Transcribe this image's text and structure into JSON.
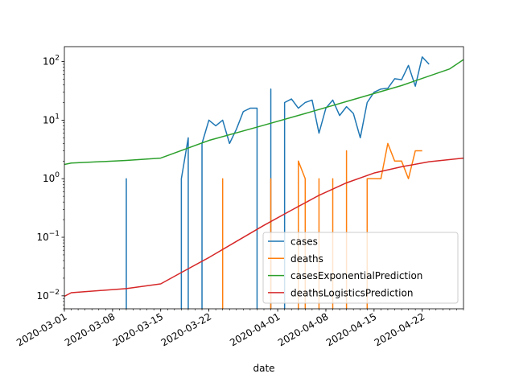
{
  "chart_data": {
    "type": "line",
    "xlabel": "date",
    "ylabel": "",
    "title": "",
    "yscale": "log",
    "ylim": [
      0.006,
      180
    ],
    "xlim": [
      "2020-03-01",
      "2020-04-28"
    ],
    "x_ticks": [
      "2020-03-01",
      "2020-03-08",
      "2020-03-15",
      "2020-03-22",
      "2020-04-01",
      "2020-04-08",
      "2020-04-15",
      "2020-04-22"
    ],
    "y_ticks": [
      {
        "value": 0.01,
        "base": "10",
        "exp": "−2"
      },
      {
        "value": 0.1,
        "base": "10",
        "exp": "−1"
      },
      {
        "value": 1,
        "base": "10",
        "exp": "0"
      },
      {
        "value": 10,
        "base": "10",
        "exp": "1"
      },
      {
        "value": 100,
        "base": "10",
        "exp": "2"
      }
    ],
    "grid": false,
    "legend_position": "lower right",
    "series": [
      {
        "name": "cases",
        "color": "#1f77b4",
        "points": [
          [
            "2020-03-10",
            0
          ],
          [
            "2020-03-10",
            1
          ],
          [
            "2020-03-10",
            0
          ],
          [
            "2020-03-18",
            0
          ],
          [
            "2020-03-18",
            1
          ],
          [
            "2020-03-19",
            5
          ],
          [
            "2020-03-19",
            0
          ],
          [
            "2020-03-21",
            0
          ],
          [
            "2020-03-21",
            4
          ],
          [
            "2020-03-22",
            10
          ],
          [
            "2020-03-23",
            8
          ],
          [
            "2020-03-24",
            10
          ],
          [
            "2020-03-25",
            4
          ],
          [
            "2020-03-26",
            7
          ],
          [
            "2020-03-27",
            14
          ],
          [
            "2020-03-28",
            16
          ],
          [
            "2020-03-29",
            16
          ],
          [
            "2020-03-29",
            0
          ],
          [
            "2020-03-31",
            0
          ],
          [
            "2020-03-31",
            34
          ],
          [
            "2020-03-31",
            0
          ],
          [
            "2020-04-02",
            0
          ],
          [
            "2020-04-02",
            20
          ],
          [
            "2020-04-03",
            23
          ],
          [
            "2020-04-04",
            16
          ],
          [
            "2020-04-05",
            20
          ],
          [
            "2020-04-06",
            22
          ],
          [
            "2020-04-07",
            6
          ],
          [
            "2020-04-08",
            16
          ],
          [
            "2020-04-09",
            22
          ],
          [
            "2020-04-10",
            12
          ],
          [
            "2020-04-11",
            17
          ],
          [
            "2020-04-12",
            13
          ],
          [
            "2020-04-13",
            5
          ],
          [
            "2020-04-14",
            20
          ],
          [
            "2020-04-15",
            30
          ],
          [
            "2020-04-16",
            34
          ],
          [
            "2020-04-17",
            35
          ],
          [
            "2020-04-18",
            51
          ],
          [
            "2020-04-19",
            49
          ],
          [
            "2020-04-20",
            86
          ],
          [
            "2020-04-21",
            38
          ],
          [
            "2020-04-22",
            120
          ],
          [
            "2020-04-23",
            90
          ]
        ]
      },
      {
        "name": "deaths",
        "color": "#ff7f0e",
        "points": [
          [
            "2020-03-24",
            0
          ],
          [
            "2020-03-24",
            1
          ],
          [
            "2020-03-24",
            0
          ],
          [
            "2020-03-31",
            0
          ],
          [
            "2020-03-31",
            1
          ],
          [
            "2020-03-31",
            0
          ],
          [
            "2020-04-04",
            0
          ],
          [
            "2020-04-04",
            2
          ],
          [
            "2020-04-05",
            1
          ],
          [
            "2020-04-05",
            0
          ],
          [
            "2020-04-07",
            0
          ],
          [
            "2020-04-07",
            1
          ],
          [
            "2020-04-07",
            0
          ],
          [
            "2020-04-09",
            0
          ],
          [
            "2020-04-09",
            1
          ],
          [
            "2020-04-09",
            0
          ],
          [
            "2020-04-11",
            0
          ],
          [
            "2020-04-11",
            3
          ],
          [
            "2020-04-11",
            0
          ],
          [
            "2020-04-14",
            0
          ],
          [
            "2020-04-14",
            1
          ],
          [
            "2020-04-16",
            1
          ],
          [
            "2020-04-17",
            4
          ],
          [
            "2020-04-18",
            2
          ],
          [
            "2020-04-19",
            2
          ],
          [
            "2020-04-20",
            1
          ],
          [
            "2020-04-21",
            3
          ],
          [
            "2020-04-22",
            3
          ]
        ]
      },
      {
        "name": "casesExponentialPrediction",
        "color": "#2ca02c",
        "points": [
          [
            "2020-03-01",
            1.75
          ],
          [
            "2020-03-02",
            1.85
          ],
          [
            "2020-03-10",
            2.05
          ],
          [
            "2020-03-15",
            2.25
          ],
          [
            "2020-03-22",
            4.5
          ],
          [
            "2020-03-29",
            7.6
          ],
          [
            "2020-04-05",
            13.0
          ],
          [
            "2020-04-12",
            22.5
          ],
          [
            "2020-04-19",
            39.0
          ],
          [
            "2020-04-26",
            75.0
          ],
          [
            "2020-04-28",
            108.0
          ]
        ]
      },
      {
        "name": "deathsLogisticsPrediction",
        "color": "#d62728",
        "points": [
          [
            "2020-03-01",
            0.0098
          ],
          [
            "2020-03-02",
            0.0113
          ],
          [
            "2020-03-10",
            0.0133
          ],
          [
            "2020-03-15",
            0.016
          ],
          [
            "2020-03-18",
            0.025
          ],
          [
            "2020-03-22",
            0.045
          ],
          [
            "2020-03-26",
            0.085
          ],
          [
            "2020-03-30",
            0.16
          ],
          [
            "2020-04-03",
            0.29
          ],
          [
            "2020-04-07",
            0.52
          ],
          [
            "2020-04-11",
            0.85
          ],
          [
            "2020-04-15",
            1.25
          ],
          [
            "2020-04-19",
            1.6
          ],
          [
            "2020-04-23",
            1.95
          ],
          [
            "2020-04-28",
            2.25
          ]
        ]
      }
    ]
  }
}
